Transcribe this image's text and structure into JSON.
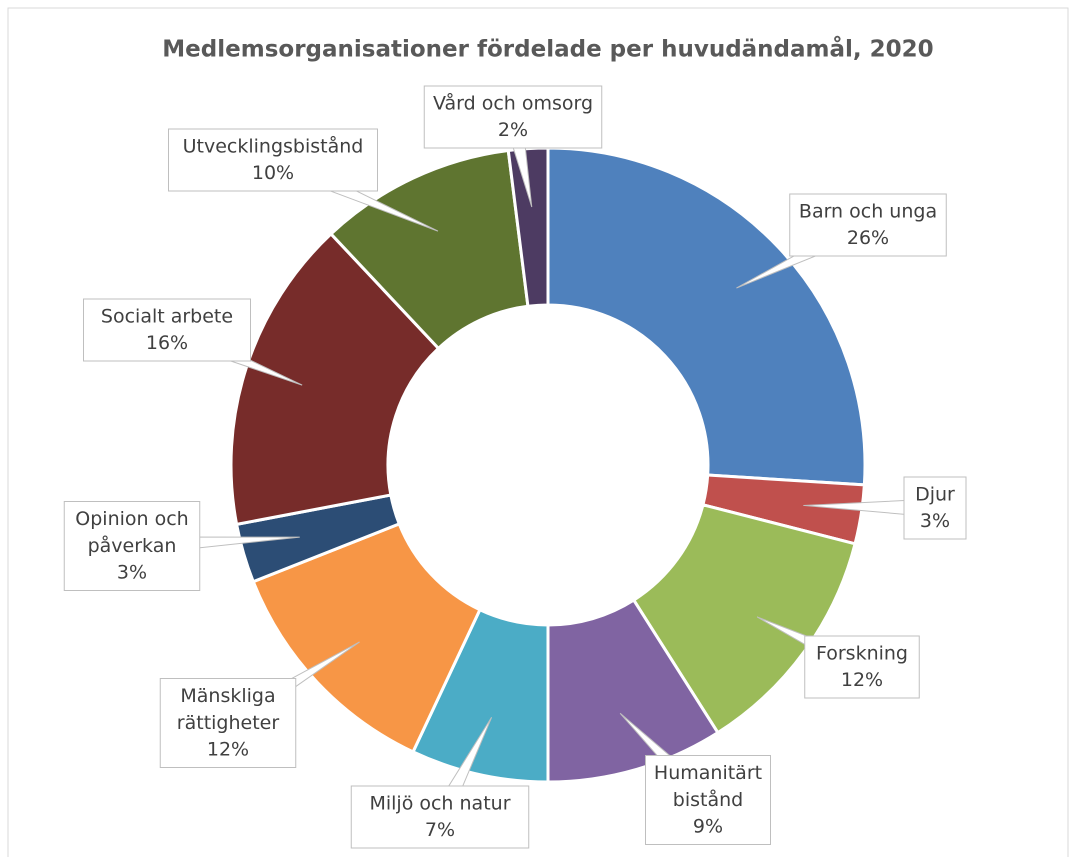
{
  "chart_data": {
    "type": "donut",
    "title": "Medlemsorganisationer fördelade per huvudändamål, 2020",
    "categories": [
      "Barn och unga",
      "Djur",
      "Forskning",
      "Humanitärt bistånd",
      "Miljö och natur",
      "Mänskliga rättigheter",
      "Opinion och påverkan",
      "Socialt arbete",
      "Utvecklingsbistånd",
      "Vård och omsorg"
    ],
    "values": [
      26,
      3,
      12,
      9,
      7,
      12,
      3,
      16,
      10,
      2
    ],
    "value_labels": [
      "26%",
      "3%",
      "12%",
      "9%",
      "7%",
      "12%",
      "3%",
      "16%",
      "10%",
      "2%"
    ],
    "colors": [
      "#4f81bd",
      "#c0504d",
      "#9bbb59",
      "#8064a2",
      "#4bacc6",
      "#f79646",
      "#2c4d75",
      "#772c2a",
      "#5f7530",
      "#4d3b62"
    ]
  }
}
